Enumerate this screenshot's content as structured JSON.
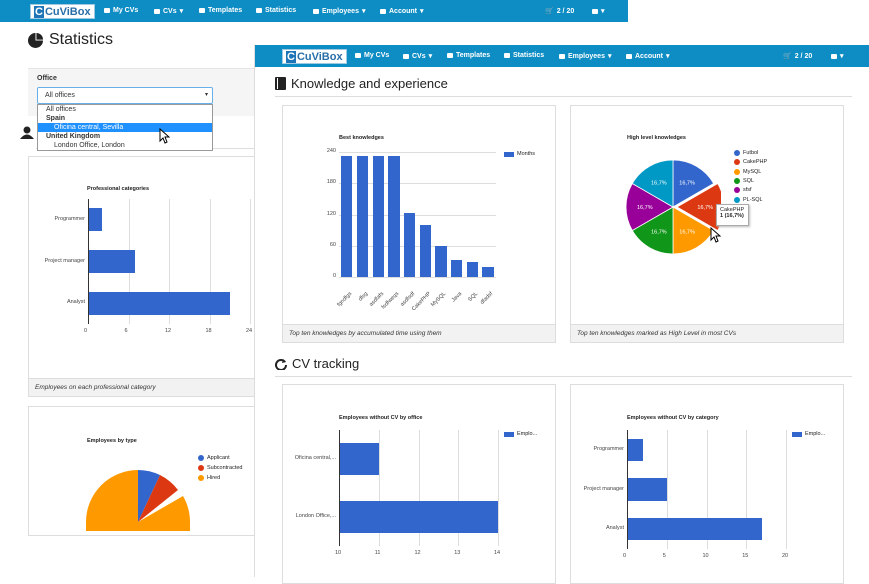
{
  "back_nav": {
    "logo": "CuViBox",
    "items": [
      "My CVs",
      "CVs",
      "Templates",
      "Statistics",
      "Employees",
      "Account"
    ],
    "cart": "2 / 20"
  },
  "front_nav": {
    "logo": "CuViBox",
    "items": [
      "My CVs",
      "CVs",
      "Templates",
      "Statistics",
      "Employees",
      "Account"
    ],
    "cart": "2 / 20"
  },
  "page_title": "Statistics",
  "filter": {
    "label": "Office",
    "selected": "All offices",
    "options": [
      {
        "text": "All offices",
        "kind": "option"
      },
      {
        "text": "Spain",
        "kind": "group"
      },
      {
        "text": "Oficina central, Sevilla",
        "kind": "option",
        "highlighted": true
      },
      {
        "text": "United Kingdom",
        "kind": "group"
      },
      {
        "text": "London Office, London",
        "kind": "option"
      }
    ]
  },
  "sections": {
    "knowledge": "Knowledge and experience",
    "tracking": "CV tracking"
  },
  "colors": {
    "nav": "#0e8dc4",
    "bar": "#3366cc"
  },
  "panels": {
    "prof_footer": "Employees on each professional category",
    "best_footer": "Top ten knowledges by accumulated time using them",
    "high_footer": "Top ten knowledges marked as High Level in most CVs"
  },
  "chart_data": [
    {
      "type": "bar",
      "orientation": "horizontal",
      "title": "Professional categories",
      "categories": [
        "Programmer",
        "Project manager",
        "Analyst"
      ],
      "values": [
        2,
        7,
        21
      ],
      "xlim": [
        0,
        24
      ],
      "xticks": [
        "0",
        "6",
        "12",
        "18",
        "24"
      ]
    },
    {
      "type": "pie",
      "title": "Employees by type",
      "series": [
        {
          "name": "Applicant",
          "color": "#3366cc"
        },
        {
          "name": "Subcontracted",
          "color": "#dc3912"
        },
        {
          "name": "Hired",
          "color": "#ff9900"
        }
      ]
    },
    {
      "type": "bar",
      "title": "Best knowledges",
      "categories": [
        "fgndfgs",
        "dfsg",
        "asdfafs",
        "fsdfweqs",
        "asdfsdf",
        "CakePHP",
        "MySQL",
        "Java",
        "SQL",
        "dfadsf"
      ],
      "values": [
        232,
        232,
        232,
        232,
        122,
        100,
        60,
        32,
        28,
        20
      ],
      "ylim": [
        0,
        240
      ],
      "yticks": [
        "0",
        "60",
        "120",
        "180",
        "240"
      ],
      "legend": "Months"
    },
    {
      "type": "pie",
      "title": "High level knowledges",
      "series": [
        {
          "name": "Futbol",
          "color": "#3366cc",
          "value": 16.7
        },
        {
          "name": "CakePHP",
          "color": "#dc3912",
          "value": 16.7
        },
        {
          "name": "MySQL",
          "color": "#ff9900",
          "value": 16.7
        },
        {
          "name": "SQL",
          "color": "#109618",
          "value": 16.7
        },
        {
          "name": "sfsf",
          "color": "#990099",
          "value": 16.7
        },
        {
          "name": "PL-SQL",
          "color": "#0099c6",
          "value": 16.7
        }
      ],
      "slice_label": "16,7%",
      "tooltip": {
        "title": "CakePHP",
        "value": "1 (16,7%)"
      }
    },
    {
      "type": "bar",
      "orientation": "horizontal",
      "title": "Employees without CV by office",
      "categories": [
        "Oficina central,...",
        "London Office,..."
      ],
      "values": [
        11,
        14
      ],
      "xlim": [
        10,
        14
      ],
      "xticks": [
        "10",
        "11",
        "12",
        "13",
        "14"
      ],
      "legend": "Emplo..."
    },
    {
      "type": "bar",
      "orientation": "horizontal",
      "title": "Employees without CV by category",
      "categories": [
        "Programmer",
        "Project manager",
        "Analyst"
      ],
      "values": [
        2,
        5,
        17
      ],
      "xlim": [
        0,
        20
      ],
      "xticks": [
        "0",
        "5",
        "10",
        "15",
        "20"
      ],
      "legend": "Emplo..."
    }
  ]
}
